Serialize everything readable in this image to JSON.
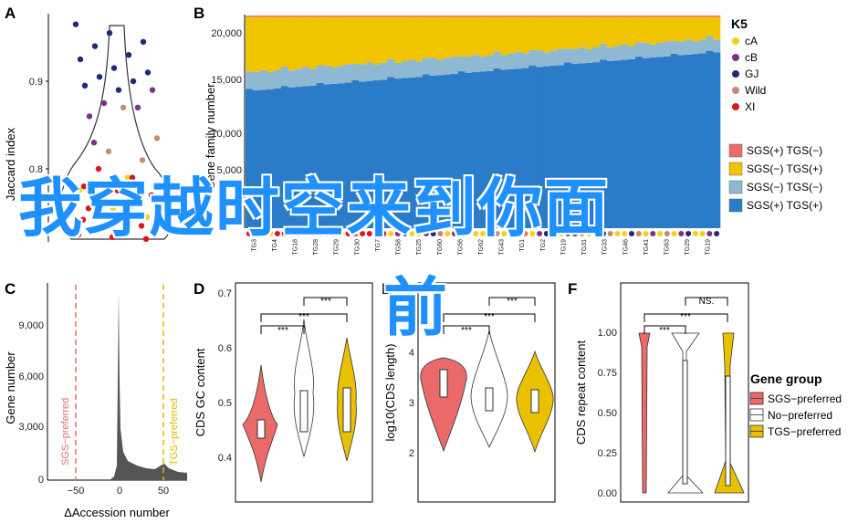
{
  "overlay": {
    "line1": "我穿越时空来到你面",
    "line2": "前"
  },
  "chart_data": [
    {
      "panel": "A",
      "type": "scatter",
      "ylabel": "Jaccard index",
      "yticks": [
        "0.8",
        "0.9"
      ],
      "groups": [
        "cA",
        "cB",
        "GJ",
        "Wild",
        "XI"
      ],
      "colors": {
        "cA": "#f1d21a",
        "cB": "#7b2f8e",
        "GJ": "#1e2a78",
        "Wild": "#c68a74",
        "XI": "#d7191c"
      },
      "points": [
        {
          "g": "GJ",
          "y": 0.965
        },
        {
          "g": "GJ",
          "y": 0.955
        },
        {
          "g": "GJ",
          "y": 0.945
        },
        {
          "g": "GJ",
          "y": 0.94
        },
        {
          "g": "GJ",
          "y": 0.93
        },
        {
          "g": "GJ",
          "y": 0.925
        },
        {
          "g": "GJ",
          "y": 0.915
        },
        {
          "g": "GJ",
          "y": 0.91
        },
        {
          "g": "GJ",
          "y": 0.905
        },
        {
          "g": "GJ",
          "y": 0.9
        },
        {
          "g": "GJ",
          "y": 0.895
        },
        {
          "g": "GJ",
          "y": 0.89
        },
        {
          "g": "cB",
          "y": 0.89
        },
        {
          "g": "cB",
          "y": 0.875
        },
        {
          "g": "cB",
          "y": 0.87
        },
        {
          "g": "cB",
          "y": 0.86
        },
        {
          "g": "Wild",
          "y": 0.87
        },
        {
          "g": "Wild",
          "y": 0.835
        },
        {
          "g": "Wild",
          "y": 0.82
        },
        {
          "g": "Wild",
          "y": 0.81
        },
        {
          "g": "cB",
          "y": 0.83
        },
        {
          "g": "cA",
          "y": 0.79
        },
        {
          "g": "cA",
          "y": 0.775
        },
        {
          "g": "cA",
          "y": 0.755
        },
        {
          "g": "cA",
          "y": 0.745
        },
        {
          "g": "XI",
          "y": 0.8
        },
        {
          "g": "XI",
          "y": 0.79
        },
        {
          "g": "XI",
          "y": 0.78
        },
        {
          "g": "XI",
          "y": 0.775
        },
        {
          "g": "XI",
          "y": 0.77
        },
        {
          "g": "XI",
          "y": 0.765
        },
        {
          "g": "XI",
          "y": 0.76
        },
        {
          "g": "XI",
          "y": 0.755
        },
        {
          "g": "XI",
          "y": 0.75
        },
        {
          "g": "XI",
          "y": 0.745
        },
        {
          "g": "XI",
          "y": 0.74
        },
        {
          "g": "XI",
          "y": 0.735
        },
        {
          "g": "XI",
          "y": 0.73
        },
        {
          "g": "XI",
          "y": 0.728
        },
        {
          "g": "XI",
          "y": 0.725
        },
        {
          "g": "XI",
          "y": 0.722
        },
        {
          "g": "XI",
          "y": 0.72
        },
        {
          "g": "XI",
          "y": 0.765
        },
        {
          "g": "XI",
          "y": 0.758
        },
        {
          "g": "XI",
          "y": 0.742
        }
      ]
    },
    {
      "panel": "B",
      "type": "bar",
      "ylabel": "Gene family number",
      "ylim": [
        0,
        21000
      ],
      "yticks": [
        "5,000",
        "10,000",
        "15,000",
        "20,000"
      ],
      "legend_title": "K5",
      "legend_groups": [
        "cA",
        "cB",
        "GJ",
        "Wild",
        "XI"
      ],
      "series": [
        {
          "name": "SGS(+) TGS(−)",
          "color": "#ea6a6a"
        },
        {
          "name": "SGS(−) TGS(+)",
          "color": "#f0c400"
        },
        {
          "name": "SGS(−) TGS(−)",
          "color": "#8fb8d3"
        },
        {
          "name": "SGS(+) TGS(+)",
          "color": "#2a7bc8"
        }
      ],
      "n_bars": 67,
      "x_tick_labels": [
        "TG3",
        "TG4",
        "TG18",
        "TG28",
        "TG29",
        "TG30",
        "TG7",
        "TG58",
        "TG25",
        "TG60",
        "TG56",
        "TG62",
        "TG43",
        "TG1",
        "TG2",
        "TG19",
        "TG31",
        "TG33",
        "TG46",
        "TG41",
        "TG63",
        "TG29",
        "TG19"
      ]
    },
    {
      "panel": "C",
      "type": "area",
      "xlabel": "ΔAccession number",
      "ylabel": "Gene number",
      "xticks": [
        "−50",
        "0",
        "50"
      ],
      "yticks": [
        "0",
        "3,000",
        "6,000",
        "9,000"
      ],
      "annotations": [
        "SGS−preferred",
        "TGS−preferred"
      ]
    },
    {
      "panel": "D",
      "type": "violin",
      "ylabel": "CDS GC content",
      "yticks": [
        "0.4",
        "0.5",
        "0.6",
        "0.7"
      ],
      "significance": [
        "***",
        "***",
        "***"
      ]
    },
    {
      "panel": "E",
      "type": "violin",
      "ylabel": "log10(CDS length)",
      "yticks": [
        "2",
        "3",
        "4"
      ],
      "significance": [
        "***",
        "***",
        "***"
      ]
    },
    {
      "panel": "F",
      "type": "violin",
      "ylabel": "CDS repeat content",
      "yticks": [
        "0.00",
        "0.25",
        "0.50",
        "0.75",
        "1.00"
      ],
      "significance": [
        "***",
        "***",
        "NS."
      ],
      "legend_title": "Gene group",
      "legend": [
        {
          "name": "SGS−preferred",
          "color": "#ea6a6a"
        },
        {
          "name": "No−preferred",
          "color": "#ffffff"
        },
        {
          "name": "TGS−preferred",
          "color": "#e9c100"
        }
      ]
    }
  ]
}
